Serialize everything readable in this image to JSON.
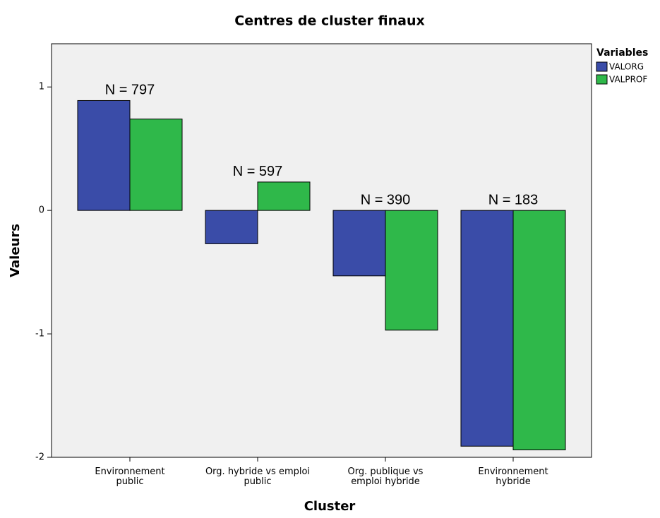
{
  "chart_data": {
    "type": "bar",
    "title": "Centres de cluster finaux",
    "x_label": "Cluster",
    "y_label": "Valeurs",
    "categories": [
      "Environnement\npublic",
      "Org. hybride vs emploi\npublic",
      "Org. publique vs\nemploi hybride",
      "Environnement\nhybride"
    ],
    "series": [
      {
        "name": "VALORG",
        "color": "#3a4ca8",
        "values": [
          0.89,
          -0.27,
          -0.53,
          -1.91
        ]
      },
      {
        "name": "VALPROF",
        "color": "#2fb84a",
        "values": [
          0.74,
          0.23,
          -0.97,
          -1.94
        ]
      }
    ],
    "annotations": [
      "N = 797",
      "N = 597",
      "N = 390",
      "N = 183"
    ],
    "legend_title": "Variables",
    "legend": "top-right-outside",
    "ylim": [
      -2,
      1.35
    ],
    "yticks": [
      -2,
      -1,
      0,
      1
    ],
    "grid": false
  }
}
